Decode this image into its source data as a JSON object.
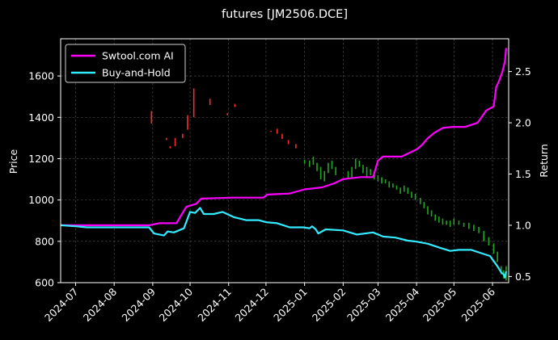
{
  "chart_data": {
    "type": "line",
    "title": "futures [JM2506.DCE]",
    "xlabel": "",
    "ylabel_left": "Price",
    "ylabel_right": "Return",
    "grid": true,
    "legend_position": "top-left",
    "x_range": [
      "2024-06-19",
      "2025-06-14"
    ],
    "y_left_range": [
      600,
      1780
    ],
    "y_right_range": [
      0.44,
      2.82
    ],
    "x_ticks": [
      "2024-07",
      "2024-08",
      "2024-09",
      "2024-10",
      "2024-11",
      "2024-12",
      "2025-01",
      "2025-02",
      "2025-03",
      "2025-04",
      "2025-05",
      "2025-06"
    ],
    "y_left_ticks": [
      "600",
      "800",
      "1000",
      "1200",
      "1400",
      "1600"
    ],
    "y_right_ticks": [
      "0.5",
      "1.0",
      "1.5",
      "2.0",
      "2.5"
    ],
    "colors": {
      "background": "#000000",
      "ai_line": "#ff00ff",
      "bh_line": "#33ebff",
      "candle_up": "#ff2a2a",
      "candle_down": "#1fa81f",
      "grid": "#5a5a5a"
    },
    "series": [
      {
        "name": "Swtool.com AI",
        "axis": "right",
        "points": [
          [
            "2024-06-19",
            1.0
          ],
          [
            "2024-08-29",
            1.0
          ],
          [
            "2024-09-06",
            1.02
          ],
          [
            "2024-09-20",
            1.02
          ],
          [
            "2024-09-28",
            1.18
          ],
          [
            "2024-10-06",
            1.21
          ],
          [
            "2024-10-10",
            1.26
          ],
          [
            "2024-11-05",
            1.27
          ],
          [
            "2024-11-25",
            1.27
          ],
          [
            "2024-11-29",
            1.27
          ],
          [
            "2024-12-02",
            1.3
          ],
          [
            "2024-12-20",
            1.31
          ],
          [
            "2025-01-01",
            1.35
          ],
          [
            "2025-01-15",
            1.37
          ],
          [
            "2025-01-25",
            1.41
          ],
          [
            "2025-02-01",
            1.45
          ],
          [
            "2025-02-15",
            1.47
          ],
          [
            "2025-02-25",
            1.47
          ],
          [
            "2025-03-01",
            1.63
          ],
          [
            "2025-03-05",
            1.67
          ],
          [
            "2025-03-20",
            1.67
          ],
          [
            "2025-03-25",
            1.7
          ],
          [
            "2025-04-01",
            1.74
          ],
          [
            "2025-04-05",
            1.78
          ],
          [
            "2025-04-10",
            1.85
          ],
          [
            "2025-04-15",
            1.9
          ],
          [
            "2025-04-22",
            1.95
          ],
          [
            "2025-04-30",
            1.96
          ],
          [
            "2025-05-10",
            1.96
          ],
          [
            "2025-05-20",
            2.0
          ],
          [
            "2025-05-27",
            2.12
          ],
          [
            "2025-06-02",
            2.16
          ],
          [
            "2025-06-04",
            2.35
          ],
          [
            "2025-06-06",
            2.4
          ],
          [
            "2025-06-09",
            2.5
          ],
          [
            "2025-06-11",
            2.6
          ],
          [
            "2025-06-12",
            2.73
          ]
        ]
      },
      {
        "name": "Buy-and-Hold",
        "axis": "right",
        "points": [
          [
            "2024-06-19",
            1.0
          ],
          [
            "2024-07-01",
            0.99
          ],
          [
            "2024-07-10",
            0.98
          ],
          [
            "2024-08-29",
            0.98
          ],
          [
            "2024-09-02",
            0.92
          ],
          [
            "2024-09-10",
            0.9
          ],
          [
            "2024-09-13",
            0.94
          ],
          [
            "2024-09-18",
            0.93
          ],
          [
            "2024-09-26",
            0.97
          ],
          [
            "2024-10-01",
            1.13
          ],
          [
            "2024-10-05",
            1.12
          ],
          [
            "2024-10-09",
            1.17
          ],
          [
            "2024-10-12",
            1.11
          ],
          [
            "2024-10-20",
            1.11
          ],
          [
            "2024-10-27",
            1.13
          ],
          [
            "2024-11-05",
            1.08
          ],
          [
            "2024-11-15",
            1.05
          ],
          [
            "2024-11-25",
            1.05
          ],
          [
            "2024-12-01",
            1.03
          ],
          [
            "2024-12-10",
            1.02
          ],
          [
            "2024-12-20",
            0.98
          ],
          [
            "2024-12-31",
            0.98
          ],
          [
            "2025-01-05",
            0.97
          ],
          [
            "2025-01-07",
            0.99
          ],
          [
            "2025-01-10",
            0.96
          ],
          [
            "2025-01-12",
            0.92
          ],
          [
            "2025-01-18",
            0.96
          ],
          [
            "2025-02-01",
            0.95
          ],
          [
            "2025-02-12",
            0.91
          ],
          [
            "2025-02-25",
            0.93
          ],
          [
            "2025-03-05",
            0.89
          ],
          [
            "2025-03-15",
            0.88
          ],
          [
            "2025-03-25",
            0.85
          ],
          [
            "2025-04-01",
            0.84
          ],
          [
            "2025-04-10",
            0.82
          ],
          [
            "2025-04-20",
            0.78
          ],
          [
            "2025-04-28",
            0.75
          ],
          [
            "2025-05-05",
            0.76
          ],
          [
            "2025-05-15",
            0.76
          ],
          [
            "2025-05-25",
            0.72
          ],
          [
            "2025-05-30",
            0.7
          ],
          [
            "2025-06-05",
            0.6
          ],
          [
            "2025-06-08",
            0.54
          ],
          [
            "2025-06-10",
            0.52
          ],
          [
            "2025-06-11",
            0.49
          ],
          [
            "2025-06-12",
            0.55
          ]
        ]
      }
    ],
    "candles": [
      [
        "2024-08-31",
        1370,
        1430
      ],
      [
        "2024-09-12",
        1290,
        1300
      ],
      [
        "2024-09-15",
        1250,
        1260
      ],
      [
        "2024-09-19",
        1260,
        1300
      ],
      [
        "2024-09-25",
        1300,
        1320
      ],
      [
        "2024-09-29",
        1340,
        1410
      ],
      [
        "2024-10-04",
        1400,
        1540
      ],
      [
        "2024-10-17",
        1460,
        1490
      ],
      [
        "2024-10-31",
        1410,
        1420
      ],
      [
        "2024-11-06",
        1450,
        1465
      ],
      [
        "2024-12-05",
        1330,
        1335
      ],
      [
        "2024-12-10",
        1320,
        1345
      ],
      [
        "2024-12-14",
        1295,
        1320
      ],
      [
        "2024-12-19",
        1270,
        1290
      ],
      [
        "2024-12-25",
        1250,
        1270
      ],
      [
        "2025-01-01",
        1175,
        1195
      ],
      [
        "2025-01-05",
        1160,
        1190
      ],
      [
        "2025-01-08",
        1170,
        1210
      ],
      [
        "2025-01-11",
        1140,
        1180
      ],
      [
        "2025-01-14",
        1100,
        1160
      ],
      [
        "2025-01-17",
        1090,
        1140
      ],
      [
        "2025-01-20",
        1130,
        1180
      ],
      [
        "2025-01-23",
        1150,
        1190
      ],
      [
        "2025-01-26",
        1120,
        1160
      ],
      [
        "2025-02-05",
        1100,
        1140
      ],
      [
        "2025-02-08",
        1110,
        1160
      ],
      [
        "2025-02-11",
        1150,
        1200
      ],
      [
        "2025-02-14",
        1160,
        1190
      ],
      [
        "2025-02-17",
        1130,
        1170
      ],
      [
        "2025-02-20",
        1110,
        1160
      ],
      [
        "2025-02-23",
        1120,
        1150
      ],
      [
        "2025-02-26",
        1100,
        1130
      ],
      [
        "2025-03-01",
        1090,
        1120
      ],
      [
        "2025-03-04",
        1080,
        1110
      ],
      [
        "2025-03-07",
        1080,
        1100
      ],
      [
        "2025-03-10",
        1060,
        1090
      ],
      [
        "2025-03-13",
        1060,
        1080
      ],
      [
        "2025-03-16",
        1050,
        1070
      ],
      [
        "2025-03-19",
        1030,
        1060
      ],
      [
        "2025-03-22",
        1040,
        1070
      ],
      [
        "2025-03-25",
        1030,
        1060
      ],
      [
        "2025-03-28",
        1010,
        1040
      ],
      [
        "2025-03-31",
        1000,
        1030
      ],
      [
        "2025-04-04",
        980,
        1010
      ],
      [
        "2025-04-07",
        960,
        990
      ],
      [
        "2025-04-10",
        930,
        970
      ],
      [
        "2025-04-13",
        920,
        950
      ],
      [
        "2025-04-16",
        900,
        930
      ],
      [
        "2025-04-19",
        890,
        920
      ],
      [
        "2025-04-22",
        880,
        910
      ],
      [
        "2025-04-25",
        880,
        900
      ],
      [
        "2025-04-28",
        870,
        900
      ],
      [
        "2025-05-01",
        880,
        910
      ],
      [
        "2025-05-05",
        880,
        900
      ],
      [
        "2025-05-09",
        870,
        890
      ],
      [
        "2025-05-13",
        860,
        890
      ],
      [
        "2025-05-17",
        850,
        880
      ],
      [
        "2025-05-21",
        840,
        870
      ],
      [
        "2025-05-25",
        800,
        850
      ],
      [
        "2025-05-29",
        780,
        820
      ],
      [
        "2025-06-02",
        740,
        790
      ],
      [
        "2025-06-05",
        700,
        750
      ],
      [
        "2025-06-08",
        640,
        680
      ],
      [
        "2025-06-10",
        620,
        660
      ],
      [
        "2025-06-12",
        610,
        680
      ]
    ]
  }
}
